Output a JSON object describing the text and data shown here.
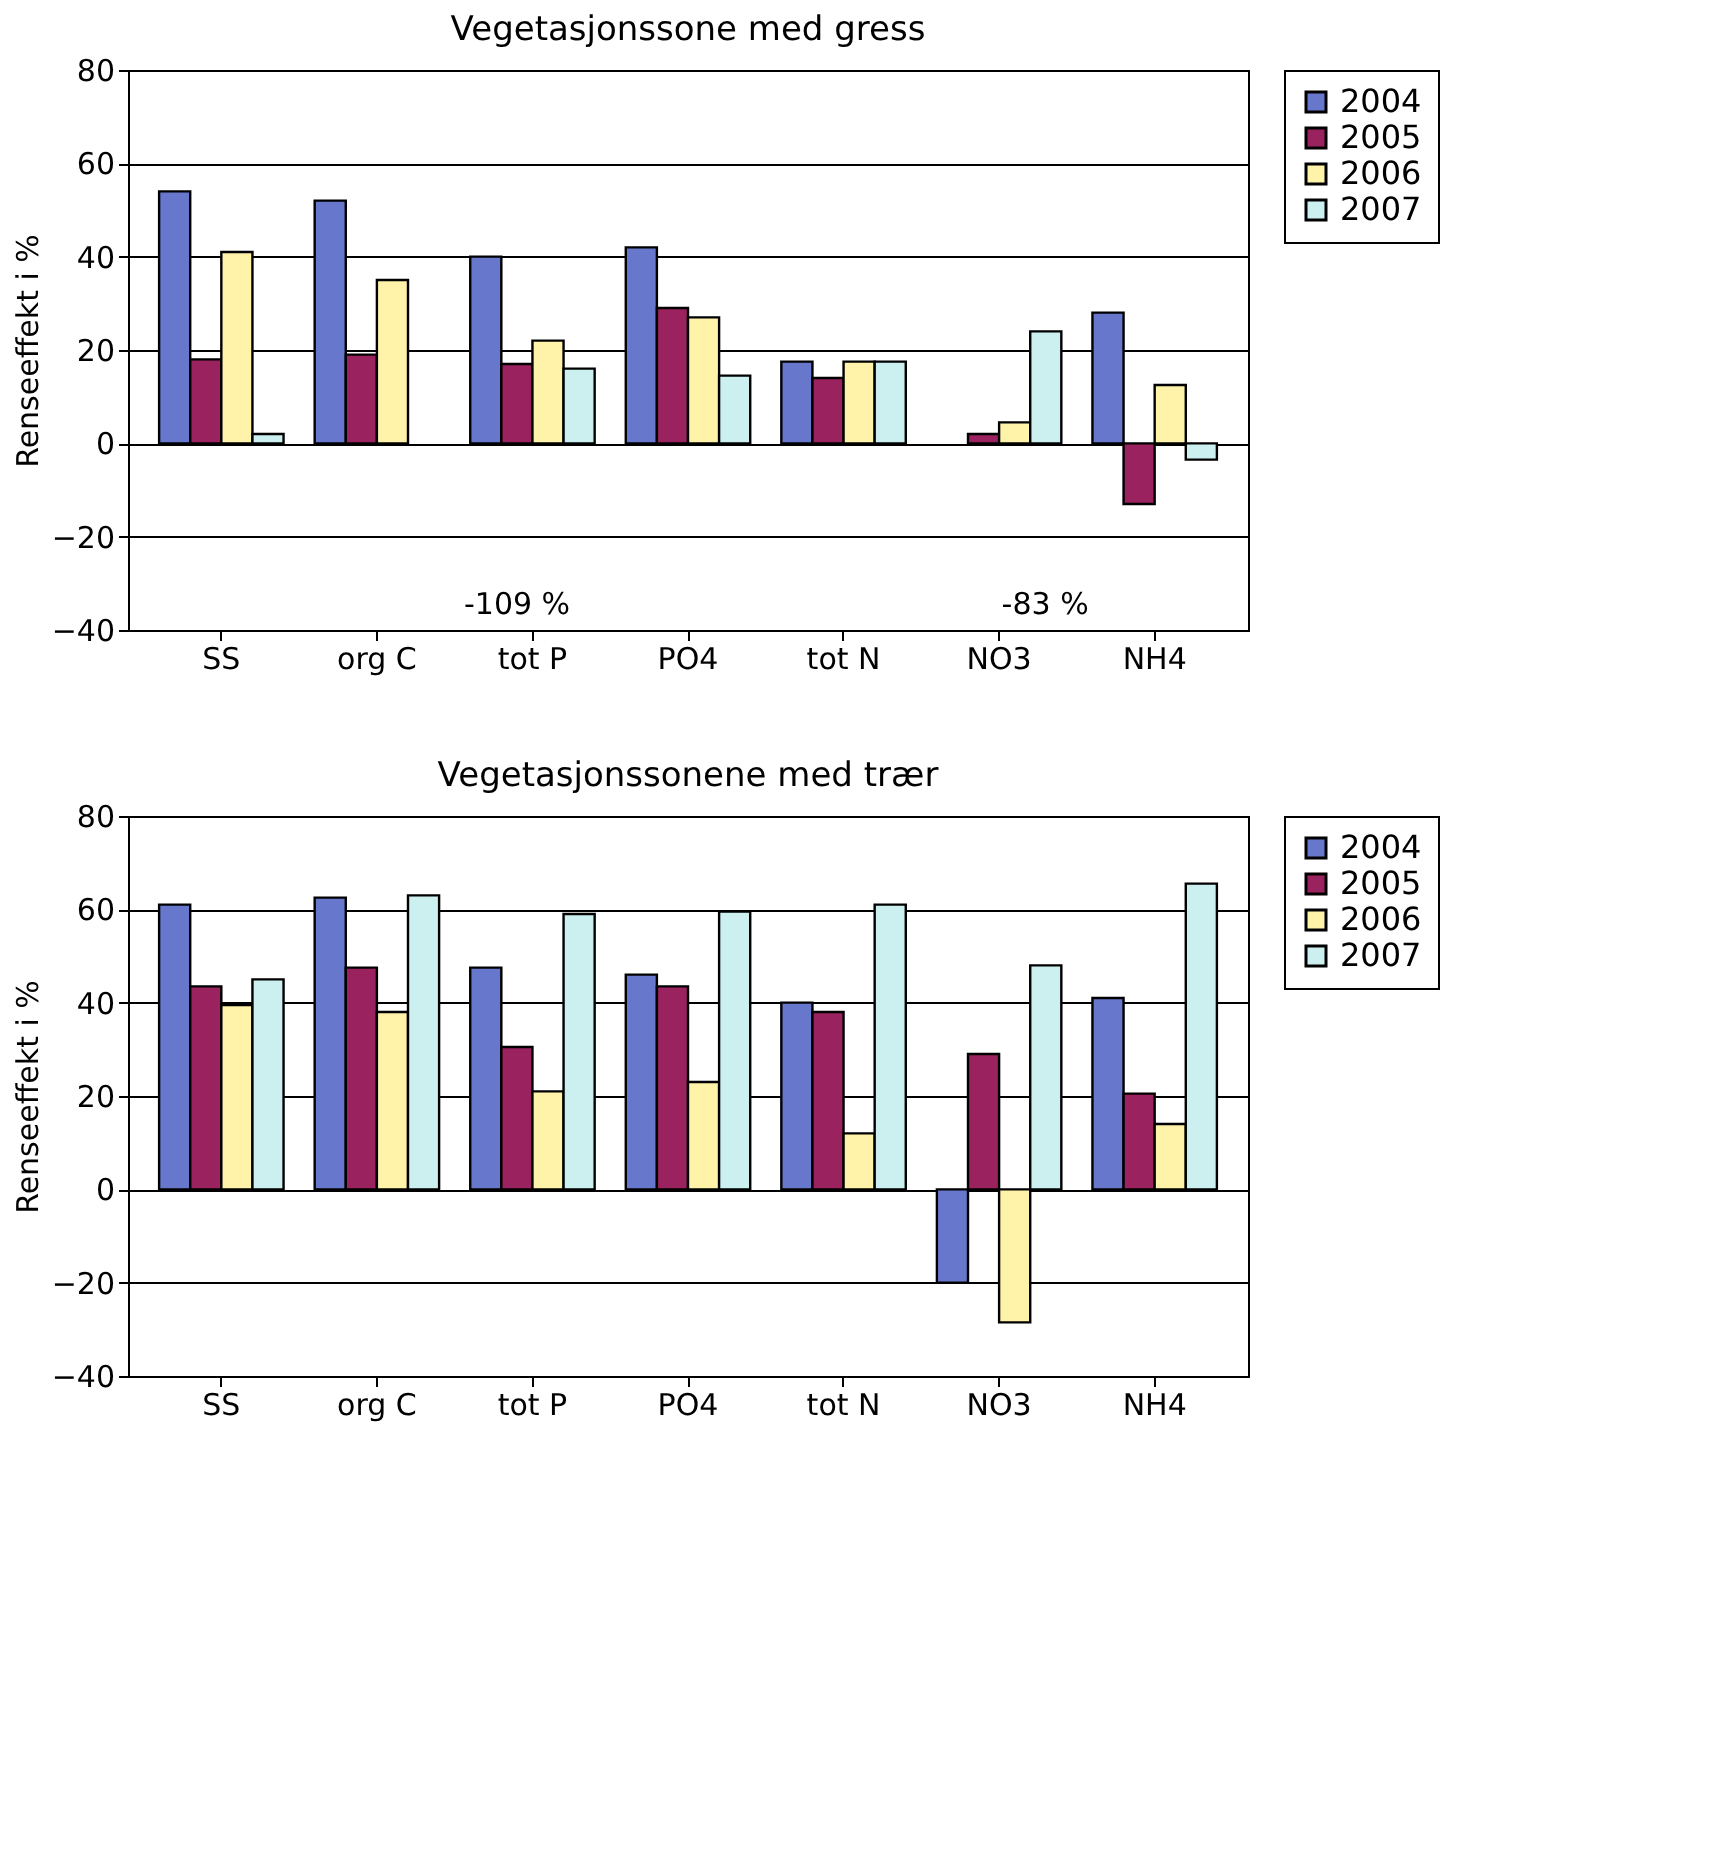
{
  "chart_data": [
    {
      "type": "bar",
      "title": "Vegetasjonssone med gress",
      "ylabel": "Renseeffekt i %",
      "categories": [
        "SS",
        "org C",
        "tot P",
        "PO4",
        "tot N",
        "NO3",
        "NH4"
      ],
      "ylim": [
        -40,
        80
      ],
      "yticks": [
        -40,
        -20,
        0,
        20,
        40,
        60,
        80
      ],
      "grid": "y",
      "legend": "right",
      "series": [
        {
          "name": "2004",
          "color": "#6677cc",
          "values": [
            54,
            52,
            40,
            42,
            17.5,
            null,
            28
          ]
        },
        {
          "name": "2005",
          "color": "#99225f",
          "values": [
            18,
            19,
            17,
            29,
            14,
            2,
            -13
          ]
        },
        {
          "name": "2006",
          "color": "#fff3aa",
          "values": [
            41,
            35,
            22,
            27,
            17.5,
            4.5,
            12.5
          ]
        },
        {
          "name": "2007",
          "color": "#ccf0f0",
          "values": [
            2,
            null,
            16,
            14.5,
            17.5,
            24,
            -3.5
          ]
        }
      ],
      "annotations": [
        "-109 %",
        "-83 %"
      ]
    },
    {
      "type": "bar",
      "title": "Vegetasjonssonene med trær",
      "ylabel": "Renseeffekt i %",
      "categories": [
        "SS",
        "org C",
        "tot P",
        "PO4",
        "tot N",
        "NO3",
        "NH4"
      ],
      "ylim": [
        -40,
        80
      ],
      "yticks": [
        -40,
        -20,
        0,
        20,
        40,
        60,
        80
      ],
      "grid": "y",
      "legend": "right",
      "series": [
        {
          "name": "2004",
          "color": "#6677cc",
          "values": [
            61,
            62.5,
            47.5,
            46,
            40,
            -20,
            41
          ]
        },
        {
          "name": "2005",
          "color": "#99225f",
          "values": [
            43.5,
            47.5,
            30.5,
            43.5,
            38,
            29,
            20.5
          ]
        },
        {
          "name": "2006",
          "color": "#fff3aa",
          "values": [
            39.5,
            38,
            21,
            23,
            12,
            -28.5,
            14
          ]
        },
        {
          "name": "2007",
          "color": "#ccf0f0",
          "values": [
            45,
            63,
            59,
            59.5,
            61,
            48,
            65.5
          ]
        }
      ]
    }
  ]
}
